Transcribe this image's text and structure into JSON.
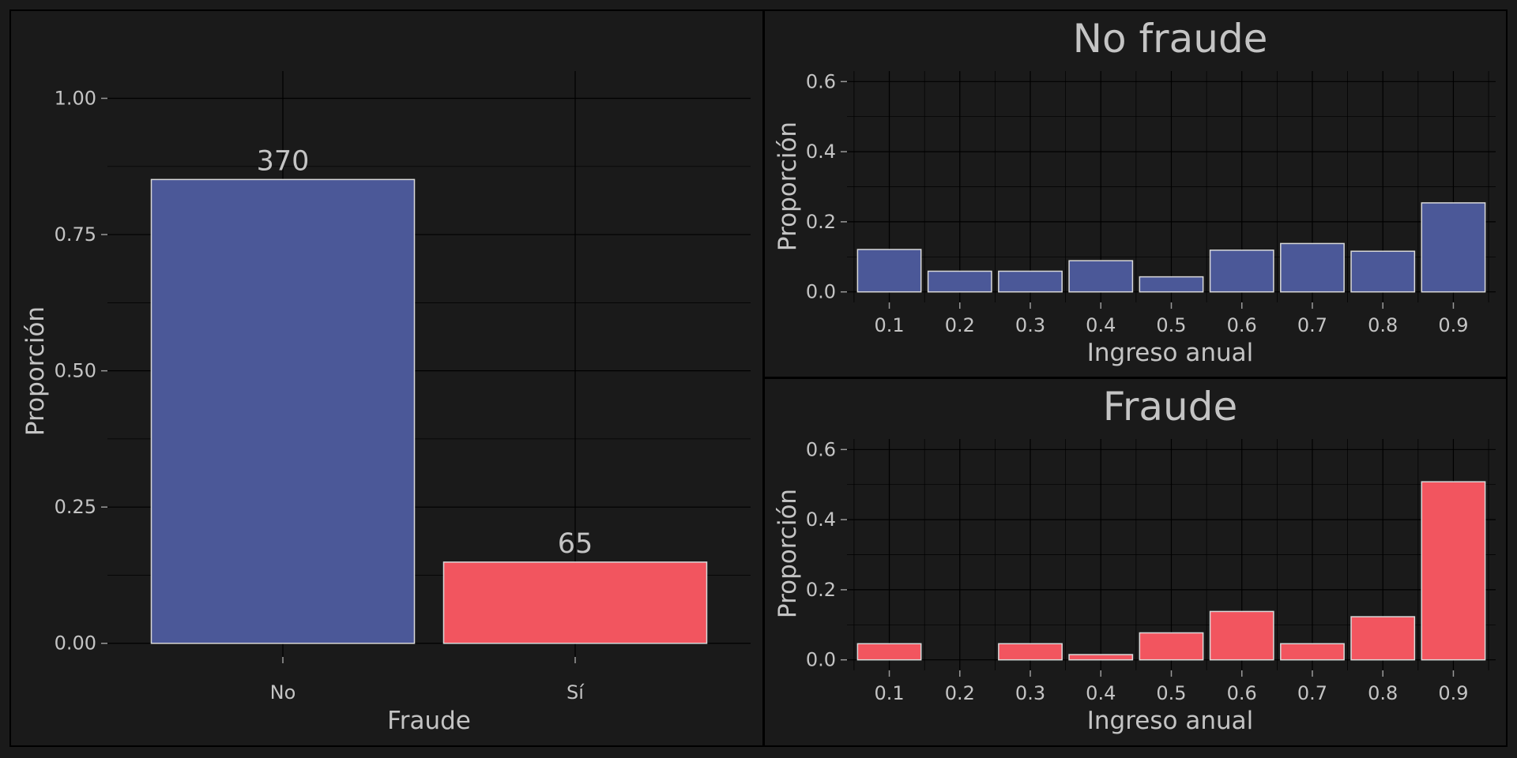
{
  "colors": {
    "background": "#1a1a1a",
    "panel_border": "#000000",
    "grid": "#000000",
    "text": "#c4c4c4",
    "tick": "#9a9a9a",
    "bar_outline": "#d9d9d9",
    "no_fraude": "#4b5898",
    "fraude": "#f2555f"
  },
  "chart_data": [
    {
      "type": "bar",
      "title": "",
      "xlabel": "Fraude",
      "ylabel": "Proporción",
      "categories": [
        "No",
        "Sí"
      ],
      "values": [
        0.851,
        0.149
      ],
      "data_labels": [
        "370",
        "65"
      ],
      "bar_colors": [
        "#4b5898",
        "#f2555f"
      ],
      "ylim": [
        -0.025,
        1.05
      ],
      "yticks": [
        0,
        0.25,
        0.5,
        0.75,
        1.0
      ],
      "ytick_labels": [
        "0.00",
        "0.25",
        "0.50",
        "0.75",
        "1.00"
      ],
      "grid": true
    },
    {
      "type": "bar",
      "title": "No fraude",
      "xlabel": "Ingreso anual",
      "ylabel": "Proporción",
      "categories": [
        "0.1",
        "0.2",
        "0.3",
        "0.4",
        "0.5",
        "0.6",
        "0.7",
        "0.8",
        "0.9"
      ],
      "values": [
        0.121,
        0.059,
        0.059,
        0.089,
        0.043,
        0.119,
        0.138,
        0.116,
        0.254
      ],
      "bar_color": "#4b5898",
      "ylim": [
        -0.03,
        0.63
      ],
      "yticks": [
        0,
        0.2,
        0.4,
        0.6
      ],
      "ytick_labels": [
        "0.0",
        "0.2",
        "0.4",
        "0.6"
      ],
      "grid": true
    },
    {
      "type": "bar",
      "title": "Fraude",
      "xlabel": "Ingreso anual",
      "ylabel": "Proporción",
      "categories": [
        "0.1",
        "0.2",
        "0.3",
        "0.4",
        "0.5",
        "0.6",
        "0.7",
        "0.8",
        "0.9"
      ],
      "values": [
        0.046,
        0,
        0.046,
        0.015,
        0.077,
        0.138,
        0.046,
        0.123,
        0.508
      ],
      "bar_color": "#f2555f",
      "ylim": [
        -0.03,
        0.63
      ],
      "yticks": [
        0,
        0.2,
        0.4,
        0.6
      ],
      "ytick_labels": [
        "0.0",
        "0.2",
        "0.4",
        "0.6"
      ],
      "grid": true
    }
  ]
}
